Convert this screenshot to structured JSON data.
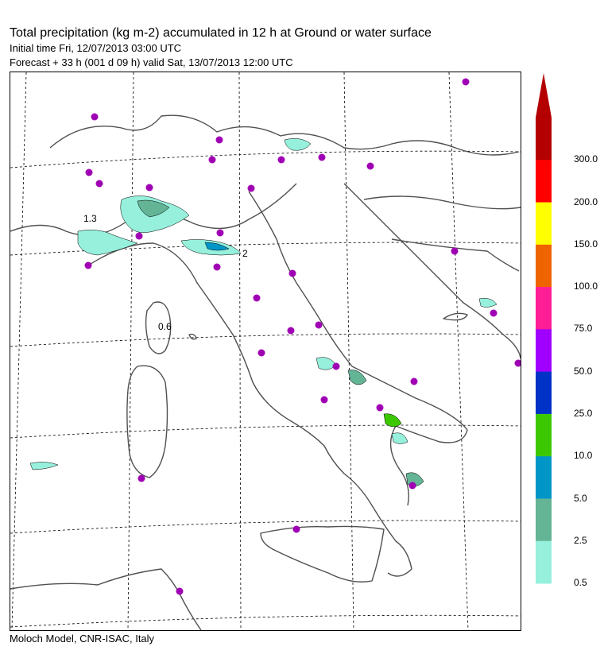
{
  "header": {
    "title": "Total precipitation (kg m-2) accumulated in  12 h at Ground or water surface",
    "initial_time": "Initial time  Fri, 12/07/2013  03:00 UTC",
    "forecast": "Forecast  +  33 h  (001 d 09 h)  valid Sat, 13/07/2013 12:00 UTC"
  },
  "footer": {
    "credit": "Moloch Model, CNR-ISAC, Italy"
  },
  "map": {
    "contour_labels": [
      {
        "id": "label-1p3",
        "text": "1.3"
      },
      {
        "id": "label-2",
        "text": "2"
      },
      {
        "id": "label-0p6",
        "text": "0.6"
      }
    ],
    "station_color": "#a000b4",
    "coast_color": "#505050",
    "grid_color": "#000000"
  },
  "legend": {
    "labels": [
      "300.0",
      "200.0",
      "150.0",
      "100.0",
      "75.0",
      "50.0",
      "25.0",
      "10.0",
      "5.0",
      "2.5",
      "0.5"
    ],
    "colors": [
      "#b40000",
      "#ff0000",
      "#ffff00",
      "#f06400",
      "#ff1e96",
      "#a000ff",
      "#0032c8",
      "#3cc800",
      "#0096c8",
      "#64b496",
      "#96f0dc"
    ]
  }
}
